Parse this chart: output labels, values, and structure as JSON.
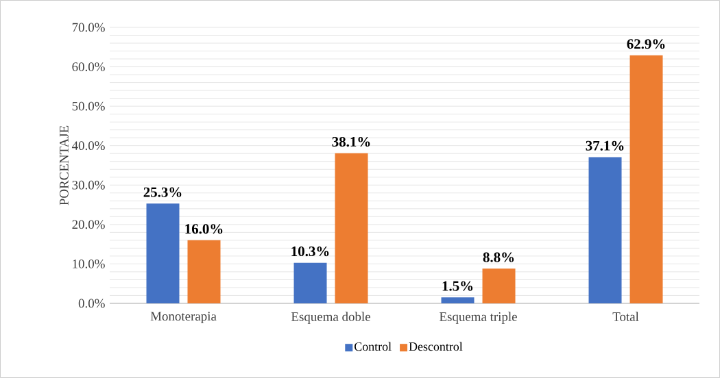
{
  "chart_data": {
    "type": "bar",
    "ylabel": "PORCENTAJE",
    "categories": [
      "Monoterapia",
      "Esquema doble",
      "Esquema triple",
      "Total"
    ],
    "series": [
      {
        "name": "Control",
        "color": "#4472c4",
        "values": [
          25.3,
          10.3,
          1.5,
          37.1
        ],
        "value_labels": [
          "25.3%",
          "10.3%",
          "1.5%",
          "37.1%"
        ]
      },
      {
        "name": "Descontrol",
        "color": "#ed7d31",
        "values": [
          16.0,
          38.1,
          8.8,
          62.9
        ],
        "value_labels": [
          "16.0%",
          "38.1%",
          "8.8%",
          "62.9%"
        ]
      }
    ],
    "ylim": [
      0,
      70
    ],
    "yticks": [
      {
        "value": 0,
        "label": "0.0%"
      },
      {
        "value": 2,
        "label": null
      },
      {
        "value": 4,
        "label": null
      },
      {
        "value": 6,
        "label": null
      },
      {
        "value": 8,
        "label": null
      },
      {
        "value": 10,
        "label": "10.0%"
      },
      {
        "value": 12,
        "label": null
      },
      {
        "value": 14,
        "label": null
      },
      {
        "value": 16,
        "label": null
      },
      {
        "value": 18,
        "label": null
      },
      {
        "value": 20,
        "label": "20.0%"
      },
      {
        "value": 22,
        "label": null
      },
      {
        "value": 24,
        "label": null
      },
      {
        "value": 26,
        "label": null
      },
      {
        "value": 28,
        "label": null
      },
      {
        "value": 30,
        "label": "30.0%"
      },
      {
        "value": 32,
        "label": null
      },
      {
        "value": 34,
        "label": null
      },
      {
        "value": 36,
        "label": null
      },
      {
        "value": 38,
        "label": null
      },
      {
        "value": 40,
        "label": "40.0%"
      },
      {
        "value": 42,
        "label": null
      },
      {
        "value": 44,
        "label": null
      },
      {
        "value": 46,
        "label": null
      },
      {
        "value": 48,
        "label": null
      },
      {
        "value": 50,
        "label": "50.0%"
      },
      {
        "value": 52,
        "label": null
      },
      {
        "value": 54,
        "label": null
      },
      {
        "value": 56,
        "label": null
      },
      {
        "value": 58,
        "label": null
      },
      {
        "value": 60,
        "label": "60.0%"
      },
      {
        "value": 62,
        "label": null
      },
      {
        "value": 64,
        "label": null
      },
      {
        "value": 66,
        "label": null
      },
      {
        "value": 68,
        "label": null
      },
      {
        "value": 70,
        "label": "70.0%"
      }
    ],
    "grid": "y",
    "legend": "bottom"
  }
}
